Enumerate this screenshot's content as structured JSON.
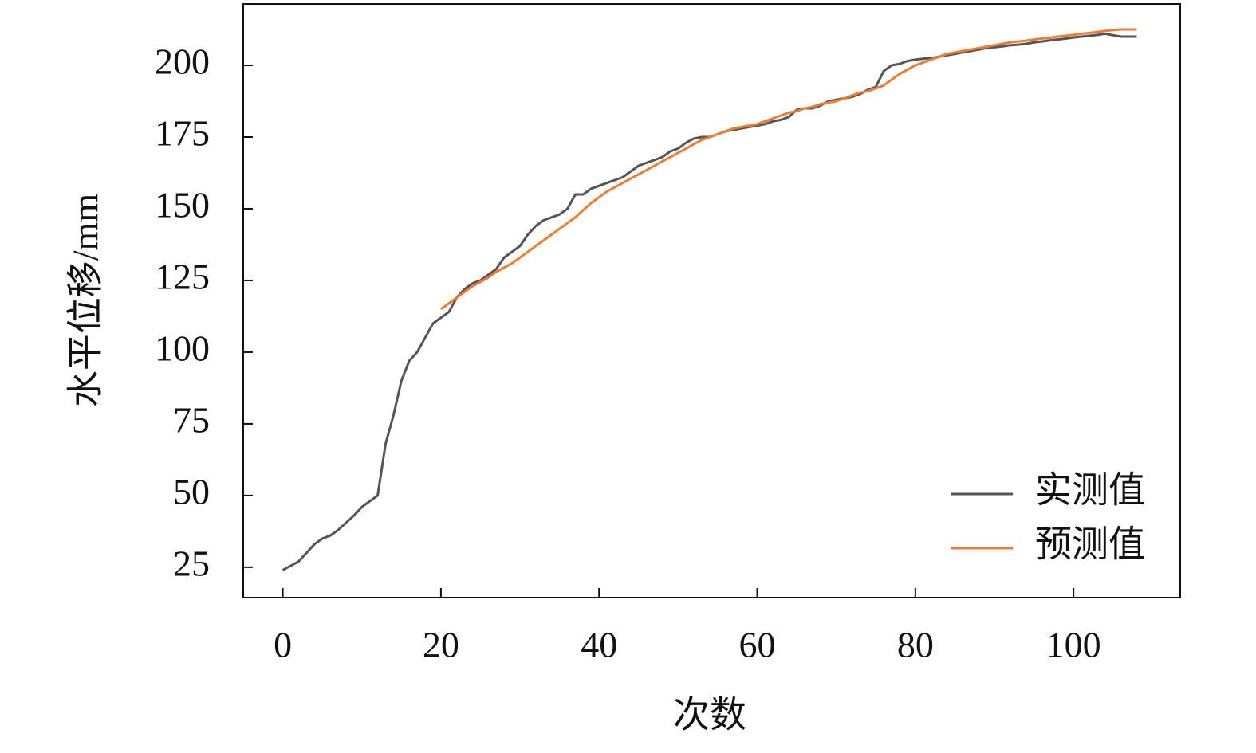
{
  "chart_data": {
    "type": "line",
    "x_label": "次数",
    "y_label": "水平位移/mm",
    "x": [
      0,
      1,
      2,
      3,
      4,
      5,
      6,
      7,
      8,
      9,
      10,
      11,
      12,
      13,
      14,
      15,
      16,
      17,
      18,
      19,
      20,
      21,
      22,
      23,
      24,
      25,
      26,
      27,
      28,
      29,
      30,
      31,
      32,
      33,
      34,
      35,
      36,
      37,
      38,
      39,
      40,
      41,
      42,
      43,
      44,
      45,
      46,
      47,
      48,
      49,
      50,
      51,
      52,
      53,
      54,
      55,
      56,
      57,
      58,
      59,
      60,
      61,
      62,
      63,
      64,
      65,
      66,
      67,
      68,
      69,
      70,
      71,
      72,
      73,
      74,
      75,
      76,
      77,
      78,
      79,
      80,
      81,
      82,
      83,
      84,
      85,
      86,
      87,
      88,
      89,
      90,
      91,
      92,
      93,
      94,
      95,
      96,
      97,
      98,
      99,
      100,
      101,
      102,
      103,
      104,
      105,
      106,
      107,
      108
    ],
    "series": [
      {
        "name": "实测值",
        "color": "#555555",
        "values": [
          24,
          25.5,
          27,
          30,
          33,
          35,
          36,
          38,
          40.5,
          43,
          46,
          48,
          50,
          68,
          78,
          90,
          97,
          100,
          105,
          110,
          112,
          114,
          119,
          122,
          124,
          125,
          127,
          129,
          133,
          135,
          137,
          141,
          144,
          146,
          147,
          148,
          150,
          155,
          155,
          157,
          158,
          159,
          160,
          161,
          163,
          165,
          166,
          167,
          168,
          170,
          171,
          173,
          174.5,
          175,
          175,
          176,
          177,
          177.5,
          178,
          178.5,
          179,
          179.5,
          180.5,
          181,
          182,
          184.5,
          185,
          185,
          186,
          187.5,
          188,
          188.5,
          189,
          190,
          191.5,
          192.5,
          198,
          200,
          200.5,
          201.5,
          202,
          202.3,
          202.5,
          203,
          203.5,
          204,
          204.5,
          205,
          205.5,
          206,
          206.3,
          206.6,
          207,
          207.2,
          207.5,
          208,
          208.3,
          208.7,
          209,
          209.3,
          209.7,
          210,
          210.3,
          210.6,
          211,
          210.5,
          210,
          210,
          210
        ]
      },
      {
        "name": "预测值",
        "color": "#ee7d31",
        "values": [
          null,
          null,
          null,
          null,
          null,
          null,
          null,
          null,
          null,
          null,
          null,
          null,
          null,
          null,
          null,
          null,
          null,
          null,
          null,
          null,
          115,
          117,
          119,
          121,
          123,
          124.5,
          126,
          128,
          129.5,
          131,
          133,
          135,
          137,
          139,
          141,
          143,
          145,
          147,
          149.5,
          152,
          154,
          156,
          157.5,
          159,
          160.5,
          162,
          163.5,
          165,
          166.5,
          168,
          169.5,
          171,
          172.5,
          174,
          175,
          176,
          177,
          178,
          178.5,
          179,
          179.5,
          180.5,
          181.5,
          182.5,
          183.5,
          184,
          185,
          185.5,
          186.5,
          187,
          187.5,
          188.5,
          189.5,
          190.5,
          191,
          192,
          193,
          195,
          197,
          198.5,
          200,
          201,
          202,
          203,
          204,
          204.5,
          205,
          205.5,
          206,
          206.5,
          207,
          207.5,
          208,
          208.3,
          208.6,
          209,
          209.3,
          209.6,
          210,
          210.3,
          210.6,
          211,
          211.3,
          211.6,
          212,
          212.3,
          212.5,
          212.5,
          212.5
        ]
      }
    ],
    "xlim": [
      -5,
      113.5
    ],
    "ylim": [
      14.4,
      221.4
    ],
    "xticks": [
      0,
      20,
      40,
      60,
      80,
      100
    ],
    "yticks": [
      25,
      50,
      75,
      100,
      125,
      150,
      175,
      200
    ],
    "legend": "lower right"
  }
}
